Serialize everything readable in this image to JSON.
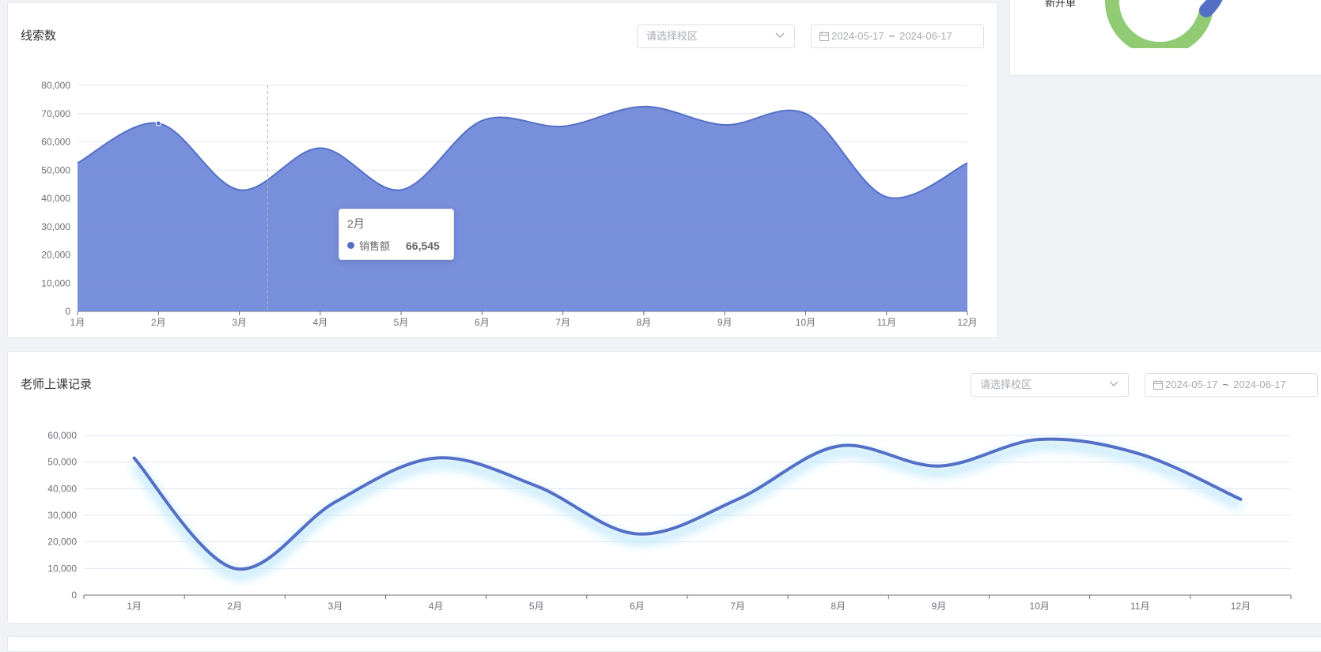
{
  "colors": {
    "primary": "#5470c6",
    "area_fill": "#6e87d9",
    "donut_green": "#91cc75"
  },
  "top_right_card": {
    "label": "新开单"
  },
  "card1": {
    "title": "线索数",
    "campus_select": {
      "placeholder": "请选择校区"
    },
    "date_range": {
      "start": "2024-05-17",
      "separator": "~",
      "end": "2024-06-17"
    },
    "tooltip": {
      "title": "2月",
      "series_name": "销售额",
      "value": "66,545"
    }
  },
  "card2": {
    "title": "老师上课记录",
    "campus_select": {
      "placeholder": "请选择校区"
    },
    "date_range": {
      "start": "2024-05-17",
      "separator": "~",
      "end": "2024-06-17"
    }
  },
  "chart_data": [
    {
      "type": "area",
      "categories": [
        "1月",
        "2月",
        "3月",
        "4月",
        "5月",
        "6月",
        "7月",
        "8月",
        "9月",
        "10月",
        "11月",
        "12月"
      ],
      "series": [
        {
          "name": "销售额",
          "values": [
            52500,
            66545,
            43000,
            57800,
            43000,
            67500,
            65500,
            72500,
            66000,
            70000,
            40500,
            52500
          ]
        }
      ],
      "ylim": [
        0,
        80000
      ],
      "yticks": [
        0,
        10000,
        20000,
        30000,
        40000,
        50000,
        60000,
        70000,
        80000
      ],
      "ytick_labels": [
        "0",
        "10,000",
        "20,000",
        "30,000",
        "40,000",
        "50,000",
        "60,000",
        "70,000",
        "80,000"
      ],
      "grid": true,
      "tooltip_category": "2月"
    },
    {
      "type": "line",
      "categories": [
        "1月",
        "2月",
        "3月",
        "4月",
        "5月",
        "6月",
        "7月",
        "8月",
        "9月",
        "10月",
        "11月",
        "12月"
      ],
      "series": [
        {
          "values": [
            51500,
            10000,
            35000,
            51500,
            41000,
            23000,
            36000,
            56000,
            48500,
            58500,
            53000,
            36000
          ]
        }
      ],
      "ylim": [
        0,
        60000
      ],
      "yticks": [
        0,
        10000,
        20000,
        30000,
        40000,
        50000,
        60000
      ],
      "ytick_labels": [
        "0",
        "10,000",
        "20,000",
        "30,000",
        "40,000",
        "50,000",
        "60,000"
      ],
      "grid": true
    }
  ]
}
